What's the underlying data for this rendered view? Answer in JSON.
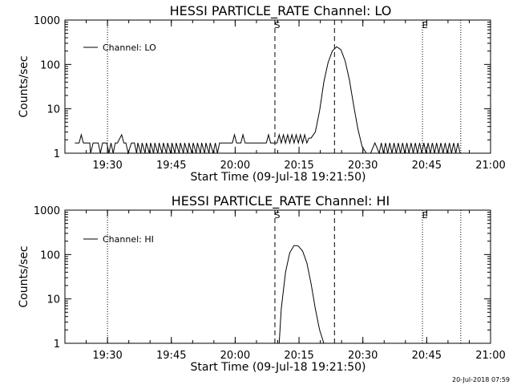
{
  "chart_data": [
    {
      "type": "line",
      "title": "HESSI PARTICLE_RATE Channel: LO",
      "xlabel": "Start Time (09-Jul-18 19:21:50)",
      "ylabel": "Counts/sec",
      "yscale": "log",
      "ylim": [
        1,
        1000
      ],
      "xlim_minutes": [
        -1.833,
        98.167
      ],
      "xtick_labels": [
        "19:30",
        "19:45",
        "20:00",
        "20:15",
        "20:30",
        "20:45",
        "21:00"
      ],
      "xtick_minutes": [
        8.167,
        23.167,
        38.167,
        53.167,
        68.167,
        83.167,
        98.167
      ],
      "ytick_labels": [
        "1",
        "10",
        "100",
        "1000"
      ],
      "ytick_values": [
        1,
        10,
        100,
        1000
      ],
      "legend": [
        "Channel: LO"
      ],
      "annotations": [
        {
          "label": "S",
          "minute": 47.5,
          "style": "dashed"
        },
        {
          "label": "E",
          "minute": 82.167,
          "style": "dotted"
        }
      ],
      "vlines": [
        {
          "minute": 8.167,
          "style": "dotted"
        },
        {
          "minute": 47.5,
          "style": "dashed"
        },
        {
          "minute": 61.5,
          "style": "dashed"
        },
        {
          "minute": 82.167,
          "style": "dotted"
        },
        {
          "minute": 91.167,
          "style": "dotted"
        }
      ],
      "series": [
        {
          "name": "Channel: LO",
          "x": [
            0.5,
            1.5,
            2.0,
            2.5,
            4.0,
            4.2,
            4.8,
            6.0,
            6.5,
            7.0,
            8.0,
            8.5,
            9.0,
            9.5,
            10.0,
            10.5,
            11.5,
            12.0,
            12.5,
            13.0,
            13.8,
            14.5,
            15.0,
            15.3,
            16.0,
            16.3,
            17.0,
            17.3,
            18.0,
            18.3,
            19.0,
            19.3,
            20.0,
            20.3,
            21.0,
            21.3,
            22.0,
            22.3,
            23.0,
            23.3,
            24.0,
            24.3,
            25.0,
            25.3,
            26.0,
            26.3,
            27.0,
            27.3,
            28.0,
            28.3,
            29.0,
            29.3,
            30.0,
            30.3,
            31.0,
            31.3,
            32.0,
            32.3,
            33.0,
            33.5,
            34.0,
            34.5,
            35.0,
            37.5,
            38.0,
            38.5,
            39.5,
            40.0,
            40.5,
            45.5,
            46.0,
            46.5,
            48.0,
            48.5,
            49.0,
            49.5,
            50.0,
            50.5,
            51.0,
            51.5,
            52.0,
            52.5,
            53.0,
            53.5,
            54.0,
            54.5,
            55.0,
            55.5,
            56.0,
            57.0,
            58.0,
            59.0,
            60.0,
            61.0,
            62.0,
            63.0,
            64.0,
            65.0,
            66.0,
            67.0,
            68.0,
            69.0,
            70.0,
            71.0,
            72.0,
            72.5,
            73.0,
            73.5,
            74.0,
            74.5,
            75.0,
            75.5,
            76.0,
            76.5,
            77.0,
            77.5,
            78.0,
            78.5,
            79.0,
            79.5,
            80.0,
            80.5,
            81.0,
            81.5,
            82.0,
            82.5,
            83.0,
            83.5,
            84.0,
            84.5,
            85.0,
            85.5,
            86.0,
            86.5,
            87.0,
            87.5,
            88.0,
            88.5,
            89.0,
            89.5,
            90.0,
            90.5,
            91.0
          ],
          "y": [
            1.7,
            1.7,
            2.6,
            1.7,
            1.7,
            1.0,
            1.7,
            1.7,
            1.0,
            1.7,
            1.7,
            1.0,
            1.7,
            1.0,
            1.7,
            1.7,
            2.6,
            1.7,
            1.7,
            1.0,
            1.7,
            1.7,
            1.0,
            1.7,
            1.0,
            1.7,
            1.0,
            1.7,
            1.0,
            1.7,
            1.0,
            1.7,
            1.0,
            1.7,
            1.0,
            1.7,
            1.0,
            1.7,
            1.0,
            1.7,
            1.0,
            1.7,
            1.0,
            1.7,
            1.0,
            1.7,
            1.0,
            1.7,
            1.0,
            1.7,
            1.0,
            1.7,
            1.0,
            1.7,
            1.0,
            1.7,
            1.0,
            1.7,
            1.0,
            1.7,
            1.0,
            1.7,
            1.7,
            1.7,
            2.6,
            1.7,
            1.7,
            2.6,
            1.7,
            1.7,
            2.6,
            1.7,
            1.7,
            2.6,
            1.7,
            2.6,
            1.7,
            2.6,
            1.7,
            2.6,
            1.7,
            2.6,
            1.7,
            2.6,
            1.7,
            2.6,
            1.7,
            2.2,
            2.2,
            3.0,
            9.0,
            40,
            110,
            200,
            250,
            215,
            120,
            45,
            12,
            3.5,
            1.4,
            1.0,
            1.0,
            1.7,
            1.0,
            1.7,
            1.0,
            1.7,
            1.0,
            1.7,
            1.0,
            1.7,
            1.0,
            1.7,
            1.0,
            1.7,
            1.0,
            1.7,
            1.0,
            1.7,
            1.0,
            1.7,
            1.0,
            1.7,
            1.0,
            1.7,
            1.0,
            1.7,
            1.0,
            1.7,
            1.0,
            1.7,
            1.0,
            1.7,
            1.0,
            1.7,
            1.0,
            1.7,
            1.0,
            1.7,
            1.0,
            1.7,
            1.0
          ]
        }
      ]
    },
    {
      "type": "line",
      "title": "HESSI PARTICLE_RATE Channel: HI",
      "xlabel": "Start Time (09-Jul-18 19:21:50)",
      "ylabel": "Counts/sec",
      "yscale": "log",
      "ylim": [
        1,
        1000
      ],
      "xlim_minutes": [
        -1.833,
        98.167
      ],
      "xtick_labels": [
        "19:30",
        "19:45",
        "20:00",
        "20:15",
        "20:30",
        "20:45",
        "21:00"
      ],
      "xtick_minutes": [
        8.167,
        23.167,
        38.167,
        53.167,
        68.167,
        83.167,
        98.167
      ],
      "ytick_labels": [
        "1",
        "10",
        "100",
        "1000"
      ],
      "ytick_values": [
        1,
        10,
        100,
        1000
      ],
      "legend": [
        "Channel: HI"
      ],
      "annotations": [
        {
          "label": "S",
          "minute": 47.5,
          "style": "dashed"
        },
        {
          "label": "E",
          "minute": 82.167,
          "style": "dotted"
        }
      ],
      "vlines": [
        {
          "minute": 8.167,
          "style": "dotted"
        },
        {
          "minute": 47.5,
          "style": "dashed"
        },
        {
          "minute": 61.5,
          "style": "dashed"
        },
        {
          "minute": 82.167,
          "style": "dotted"
        },
        {
          "minute": 91.167,
          "style": "dotted"
        }
      ],
      "series": [
        {
          "name": "Channel: HI",
          "x": [
            48.5,
            49.0,
            50.0,
            51.0,
            52.0,
            53.0,
            54.0,
            55.0,
            56.0,
            57.0,
            58.0,
            59.0
          ],
          "y": [
            1.0,
            6.0,
            40,
            110,
            160,
            155,
            120,
            65,
            22,
            6.0,
            2.0,
            1.0
          ]
        }
      ]
    }
  ],
  "footer": {
    "timestamp": "20-Jul-2018 07:59"
  }
}
